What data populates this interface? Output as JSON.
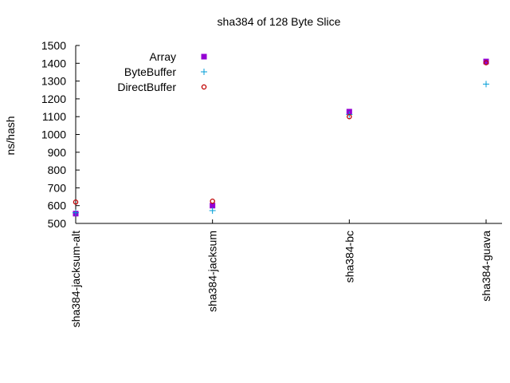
{
  "chart_data": {
    "type": "scatter",
    "title": "sha384 of 128 Byte Slice",
    "xlabel": "",
    "ylabel": "ns/hash",
    "categories": [
      "sha384-jacksum-alt",
      "sha384-jacksum",
      "sha384-bc",
      "sha384-guava"
    ],
    "ylim": [
      500,
      1500
    ],
    "yticks": [
      500,
      600,
      700,
      800,
      900,
      1000,
      1100,
      1200,
      1300,
      1400,
      1500
    ],
    "grid": false,
    "legend_position": "top-left",
    "series": [
      {
        "name": "Array",
        "marker": "square",
        "color": "#9400d3",
        "values": [
          555,
          600,
          1128,
          1410
        ]
      },
      {
        "name": "ByteBuffer",
        "marker": "plus",
        "color": "#009ed7",
        "values": [
          560,
          572,
          1112,
          1283
        ]
      },
      {
        "name": "DirectBuffer",
        "marker": "circle",
        "color": "#c00000",
        "values": [
          620,
          625,
          1100,
          1403
        ]
      }
    ]
  }
}
